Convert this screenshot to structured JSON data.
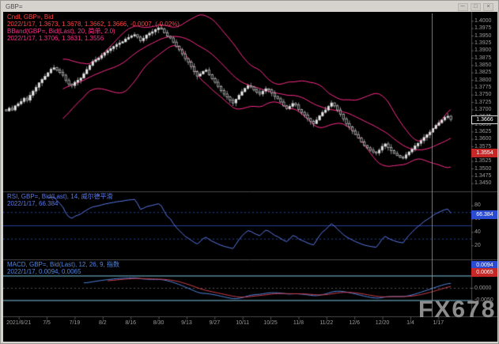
{
  "window": {
    "title": "GBP=",
    "min_label": "─",
    "max_label": "□",
    "close_label": "×"
  },
  "watermark": "FX678",
  "main_panel": {
    "legend_line1": "Cndl, GBP=, Bid",
    "legend_line2": "2022/1/17, 1.3673, 1.3678, 1.3662, 1.3666, -0.0007, (-0.02%)",
    "legend_line3": "BBand(GBP=, Bid(Last), 20, 简单, 2.0)",
    "legend_line4": "2022/1/17, 1.3706, 1.3631, 1.3556",
    "last_price_label": "1.3666",
    "support_label": "1.3554"
  },
  "rsi_panel": {
    "legend_line1": "RSI, GBP=, Bid(Last), 14, 威尔德平滑",
    "legend_line2": "2022/1/17, 66.384",
    "value_label": "66.384"
  },
  "macd_panel": {
    "legend_line1": "MACD, GBP=, Bid(Last), 12, 26, 9, 指数",
    "legend_line2": "2022/1/17, 0.0094, 0.0065",
    "value_label_1": "0.0094",
    "value_label_2": "0.0065"
  },
  "date_axis": {
    "ticks": [
      "2021/6/21",
      "7/5",
      "7/19",
      "8/2",
      "8/16",
      "8/30",
      "9/13",
      "9/27",
      "10/11",
      "10/25",
      "11/8",
      "11/22",
      "12/6",
      "12/20",
      "1/4",
      "1/17"
    ]
  },
  "colors": {
    "bband": "#ff2d8a",
    "candle_up": "#f2f2f2",
    "candle_down": "#0a0a0a",
    "candle_stroke": "#cfcfcf",
    "rsi": "#5b79e8",
    "rsi_level": "#24409a",
    "macd_line": "#4f86e0",
    "macd_signal": "#d04050",
    "macd_level": "#7ec8e3",
    "axis_text": "#9a9a9a",
    "separator": "#4a4a4a"
  },
  "chart_data": [
    {
      "type": "candlestick",
      "title": "GBP= daily candles with BBand(20, simple, 2.0)",
      "date": "2022/1/17",
      "open": 1.3673,
      "high": 1.3678,
      "low": 1.3662,
      "close": 1.3666,
      "change": -0.0007,
      "change_pct": "-0.02%",
      "bband_last": [
        1.3706,
        1.3631,
        1.3556
      ],
      "support_price": 1.3554,
      "ylim": [
        1.3425,
        1.4025
      ],
      "price_tick_step": 0.0025,
      "closes": [
        1.3695,
        1.3704,
        1.3698,
        1.3712,
        1.3719,
        1.3727,
        1.3738,
        1.3731,
        1.3748,
        1.3762,
        1.3775,
        1.379,
        1.3801,
        1.3812,
        1.3824,
        1.3836,
        1.3841,
        1.3833,
        1.3825,
        1.3816,
        1.3798,
        1.3786,
        1.3781,
        1.3792,
        1.3799,
        1.3806,
        1.3821,
        1.3835,
        1.3849,
        1.3862,
        1.3868,
        1.3874,
        1.3883,
        1.3892,
        1.3899,
        1.3906,
        1.3913,
        1.392,
        1.3925,
        1.3929,
        1.3938,
        1.3944,
        1.3949,
        1.3953,
        1.3945,
        1.3933,
        1.3941,
        1.3952,
        1.3958,
        1.3963,
        1.397,
        1.3976,
        1.3972,
        1.396,
        1.3948,
        1.3942,
        1.3928,
        1.3914,
        1.3902,
        1.3888,
        1.3872,
        1.386,
        1.3845,
        1.3828,
        1.3813,
        1.382,
        1.3829,
        1.3833,
        1.3818,
        1.3804,
        1.3792,
        1.3778,
        1.3764,
        1.3752,
        1.3742,
        1.3731,
        1.3722,
        1.3734,
        1.3748,
        1.376,
        1.3771,
        1.378,
        1.3776,
        1.3766,
        1.3758,
        1.3752,
        1.3762,
        1.377,
        1.3766,
        1.3755,
        1.3744,
        1.3736,
        1.3725,
        1.3712,
        1.3703,
        1.371,
        1.372,
        1.3715,
        1.37,
        1.369,
        1.3681,
        1.3669,
        1.3659,
        1.3652,
        1.3664,
        1.3678,
        1.369,
        1.3698,
        1.371,
        1.3722,
        1.3712,
        1.3698,
        1.3684,
        1.3668,
        1.3652,
        1.3641,
        1.3628,
        1.3615,
        1.3603,
        1.359,
        1.3578,
        1.357,
        1.3562,
        1.3556,
        1.3552,
        1.3562,
        1.3575,
        1.3583,
        1.3571,
        1.356,
        1.3551,
        1.3544,
        1.3538,
        1.3535,
        1.3546,
        1.3556,
        1.3565,
        1.3576,
        1.3585,
        1.3594,
        1.3605,
        1.3614,
        1.3623,
        1.3635,
        1.3646,
        1.3655,
        1.3664,
        1.3673,
        1.3677,
        1.3666
      ]
    },
    {
      "type": "line",
      "title": "RSI(14, Wilder smoothing)",
      "last": 66.384,
      "ylim": [
        0,
        100
      ],
      "levels": [
        30,
        50,
        70
      ],
      "axis_ticks": [
        80,
        60,
        40,
        20
      ]
    },
    {
      "type": "line",
      "title": "MACD(12, 26, 9, exponential)",
      "last_values": [
        0.0094,
        0.0065
      ],
      "levels": [
        0.005,
        -0.005
      ],
      "axis_ticks": [
        0.005,
        0,
        -0.005
      ],
      "zero_line": true
    }
  ]
}
